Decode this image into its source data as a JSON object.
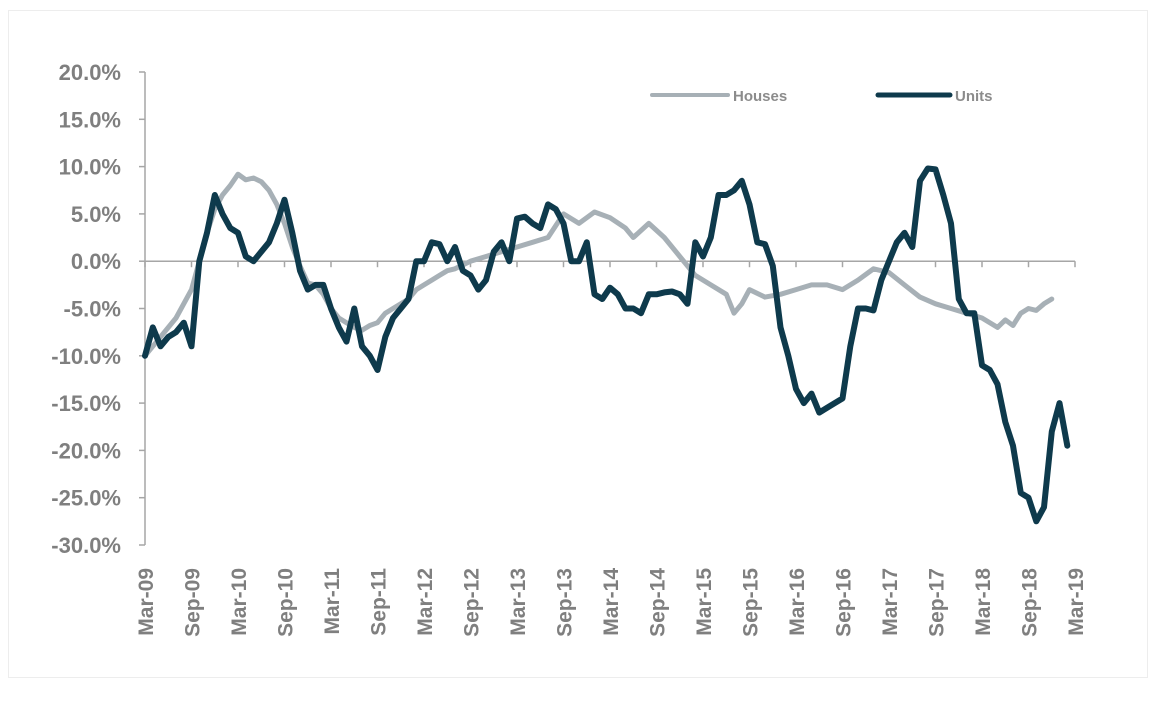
{
  "colors": {
    "houses": "#a7b0b6",
    "units": "#0e3a4c",
    "axis": "#a6a6a6",
    "tick_text": "#7f7f7f"
  },
  "chart_data": {
    "type": "line",
    "title": "",
    "xlabel": "",
    "ylabel": "",
    "ylim": [
      -30,
      20
    ],
    "y_ticks": [
      "20.0%",
      "15.0%",
      "10.0%",
      "5.0%",
      "0.0%",
      "-5.0%",
      "-10.0%",
      "-15.0%",
      "-20.0%",
      "-25.0%",
      "-30.0%"
    ],
    "x_tick_labels": [
      "Mar-09",
      "Sep-09",
      "Mar-10",
      "Sep-10",
      "Mar-11",
      "Sep-11",
      "Mar-12",
      "Sep-12",
      "Mar-13",
      "Sep-13",
      "Mar-14",
      "Sep-14",
      "Mar-15",
      "Sep-15",
      "Mar-16",
      "Sep-16",
      "Mar-17",
      "Sep-17",
      "Mar-18",
      "Sep-18",
      "Mar-19"
    ],
    "x_range_months": [
      0,
      120
    ],
    "legend": {
      "placement": "top-right",
      "entries": [
        "Houses",
        "Units"
      ]
    },
    "grid": false,
    "series": [
      {
        "name": "Houses",
        "points": [
          [
            0,
            -10
          ],
          [
            2,
            -8
          ],
          [
            4,
            -6
          ],
          [
            6,
            -3
          ],
          [
            7,
            0
          ],
          [
            8,
            3
          ],
          [
            9,
            5.5
          ],
          [
            10,
            7
          ],
          [
            11,
            8
          ],
          [
            12,
            9.2
          ],
          [
            13,
            8.6
          ],
          [
            14,
            8.8
          ],
          [
            15,
            8.4
          ],
          [
            16,
            7.5
          ],
          [
            17,
            6
          ],
          [
            18,
            4
          ],
          [
            19,
            1.5
          ],
          [
            20,
            -0.5
          ],
          [
            21,
            -2.3
          ],
          [
            22,
            -2.5
          ],
          [
            23,
            -3.5
          ],
          [
            24,
            -5
          ],
          [
            25,
            -6
          ],
          [
            26,
            -6.5
          ],
          [
            27,
            -7
          ],
          [
            28,
            -7.3
          ],
          [
            29,
            -6.8
          ],
          [
            30,
            -6.5
          ],
          [
            31,
            -5.5
          ],
          [
            32,
            -5
          ],
          [
            33,
            -4.5
          ],
          [
            34,
            -4
          ],
          [
            35,
            -3
          ],
          [
            36,
            -2.5
          ],
          [
            37,
            -2
          ],
          [
            38,
            -1.5
          ],
          [
            39,
            -1
          ],
          [
            40,
            -0.8
          ],
          [
            42,
            0
          ],
          [
            44,
            0.5
          ],
          [
            46,
            1
          ],
          [
            48,
            1.5
          ],
          [
            50,
            2
          ],
          [
            52,
            2.5
          ],
          [
            54,
            5
          ],
          [
            56,
            4
          ],
          [
            58,
            5.2
          ],
          [
            60,
            4.6
          ],
          [
            62,
            3.5
          ],
          [
            63,
            2.5
          ],
          [
            65,
            4
          ],
          [
            67,
            2.5
          ],
          [
            69,
            0.5
          ],
          [
            71,
            -1.5
          ],
          [
            73,
            -2.5
          ],
          [
            75,
            -3.5
          ],
          [
            76,
            -5.5
          ],
          [
            77,
            -4.5
          ],
          [
            78,
            -3
          ],
          [
            80,
            -3.8
          ],
          [
            82,
            -3.5
          ],
          [
            84,
            -3
          ],
          [
            86,
            -2.5
          ],
          [
            88,
            -2.5
          ],
          [
            90,
            -3
          ],
          [
            92,
            -2
          ],
          [
            94,
            -0.8
          ],
          [
            96,
            -1.2
          ],
          [
            98,
            -2.5
          ],
          [
            100,
            -3.8
          ],
          [
            102,
            -4.5
          ],
          [
            104,
            -5
          ],
          [
            106,
            -5.5
          ],
          [
            108,
            -6
          ],
          [
            110,
            -7
          ],
          [
            111,
            -6.2
          ],
          [
            112,
            -6.8
          ],
          [
            113,
            -5.5
          ],
          [
            114,
            -5
          ],
          [
            115,
            -5.2
          ],
          [
            116,
            -4.5
          ],
          [
            117,
            -4
          ]
        ]
      },
      {
        "name": "Units",
        "points": [
          [
            0,
            -10
          ],
          [
            1,
            -7
          ],
          [
            2,
            -9
          ],
          [
            3,
            -8
          ],
          [
            4,
            -7.5
          ],
          [
            5,
            -6.5
          ],
          [
            6,
            -9
          ],
          [
            7,
            0
          ],
          [
            8,
            3
          ],
          [
            9,
            7
          ],
          [
            10,
            5
          ],
          [
            11,
            3.5
          ],
          [
            12,
            3
          ],
          [
            13,
            0.5
          ],
          [
            14,
            0
          ],
          [
            15,
            1
          ],
          [
            16,
            2
          ],
          [
            17,
            4
          ],
          [
            18,
            6.5
          ],
          [
            19,
            3
          ],
          [
            20,
            -1
          ],
          [
            21,
            -3
          ],
          [
            22,
            -2.5
          ],
          [
            23,
            -2.5
          ],
          [
            24,
            -5
          ],
          [
            25,
            -7
          ],
          [
            26,
            -8.5
          ],
          [
            27,
            -5
          ],
          [
            28,
            -9
          ],
          [
            29,
            -10
          ],
          [
            30,
            -11.5
          ],
          [
            31,
            -8
          ],
          [
            32,
            -6
          ],
          [
            33,
            -5
          ],
          [
            34,
            -4
          ],
          [
            35,
            0
          ],
          [
            36,
            0
          ],
          [
            37,
            2
          ],
          [
            38,
            1.8
          ],
          [
            39,
            0
          ],
          [
            40,
            1.5
          ],
          [
            41,
            -1
          ],
          [
            42,
            -1.5
          ],
          [
            43,
            -3
          ],
          [
            44,
            -2
          ],
          [
            45,
            1
          ],
          [
            46,
            2
          ],
          [
            47,
            0
          ],
          [
            48,
            4.5
          ],
          [
            49,
            4.7
          ],
          [
            50,
            4
          ],
          [
            51,
            3.5
          ],
          [
            52,
            6
          ],
          [
            53,
            5.5
          ],
          [
            54,
            4
          ],
          [
            55,
            0
          ],
          [
            56,
            0
          ],
          [
            57,
            2
          ],
          [
            58,
            -3.5
          ],
          [
            59,
            -4
          ],
          [
            60,
            -2.8
          ],
          [
            61,
            -3.5
          ],
          [
            62,
            -5
          ],
          [
            63,
            -5
          ],
          [
            64,
            -5.5
          ],
          [
            65,
            -3.5
          ],
          [
            66,
            -3.5
          ],
          [
            67,
            -3.3
          ],
          [
            68,
            -3.2
          ],
          [
            69,
            -3.5
          ],
          [
            70,
            -4.5
          ],
          [
            71,
            2
          ],
          [
            72,
            0.5
          ],
          [
            73,
            2.5
          ],
          [
            74,
            7
          ],
          [
            75,
            7
          ],
          [
            76,
            7.5
          ],
          [
            77,
            8.5
          ],
          [
            78,
            6
          ],
          [
            79,
            2
          ],
          [
            80,
            1.8
          ],
          [
            81,
            -0.5
          ],
          [
            82,
            -7
          ],
          [
            83,
            -10
          ],
          [
            84,
            -13.5
          ],
          [
            85,
            -15
          ],
          [
            86,
            -14
          ],
          [
            87,
            -16
          ],
          [
            88,
            -15.5
          ],
          [
            89,
            -15
          ],
          [
            90,
            -14.5
          ],
          [
            91,
            -9
          ],
          [
            92,
            -5
          ],
          [
            93,
            -5
          ],
          [
            94,
            -5.2
          ],
          [
            95,
            -2
          ],
          [
            96,
            0
          ],
          [
            97,
            2
          ],
          [
            98,
            3
          ],
          [
            99,
            1.5
          ],
          [
            100,
            8.5
          ],
          [
            101,
            9.8
          ],
          [
            102,
            9.7
          ],
          [
            103,
            7
          ],
          [
            104,
            4
          ],
          [
            105,
            -4
          ],
          [
            106,
            -5.5
          ],
          [
            107,
            -5.5
          ],
          [
            108,
            -11
          ],
          [
            109,
            -11.5
          ],
          [
            110,
            -13
          ],
          [
            111,
            -17
          ],
          [
            112,
            -19.5
          ],
          [
            113,
            -24.5
          ],
          [
            114,
            -25
          ],
          [
            115,
            -27.5
          ],
          [
            116,
            -26
          ],
          [
            117,
            -18
          ],
          [
            118,
            -15
          ],
          [
            119,
            -19.5
          ]
        ]
      }
    ]
  }
}
